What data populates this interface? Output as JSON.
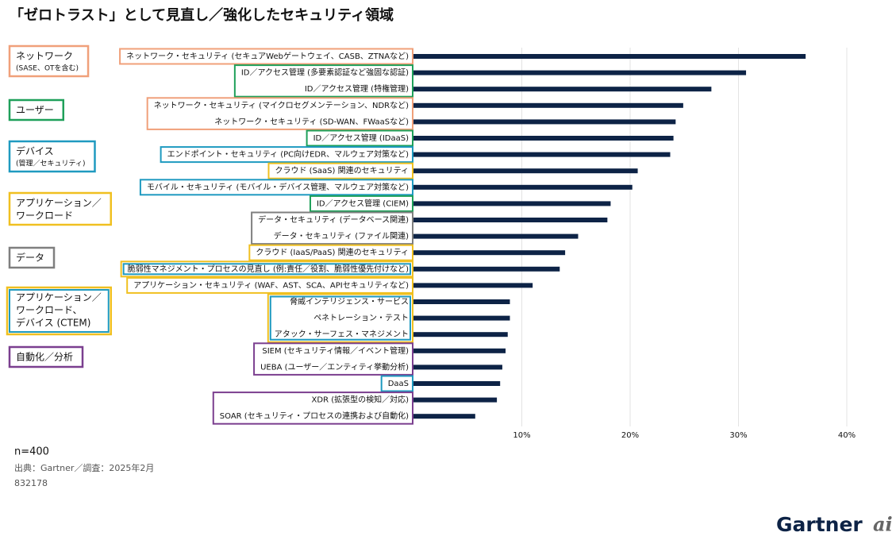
{
  "chart_data": {
    "type": "hbar",
    "title": "「ゼロトラスト」として見直し／強化したセキュリティ領域",
    "categories": [
      "ネットワーク・セキュリティ (セキュアWebゲートウェイ、CASB、ZTNAなど)",
      "ID／アクセス管理 (多要素認証など強固な認証)",
      "ID／アクセス管理 (特権管理)",
      "ネットワーク・セキュリティ (マイクロセグメンテーション、NDRなど)",
      "ネットワーク・セキュリティ (SD-WAN、FWaaSなど)",
      "ID／アクセス管理 (IDaaS)",
      "エンドポイント・セキュリティ (PC向けEDR、マルウェア対策など)",
      "クラウド (SaaS) 関連のセキュリティ",
      "モバイル・セキュリティ (モバイル・デバイス管理、マルウェア対策など)",
      "ID／アクセス管理 (CIEM)",
      "データ・セキュリティ (データベース関連)",
      "データ・セキュリティ (ファイル関連)",
      "クラウド (IaaS/PaaS) 関連のセキュリティ",
      "脆弱性マネジメント・プロセスの見直し (例:責任／役割、脆弱性優先付けなど)",
      "アプリケーション・セキュリティ (WAF、AST、SCA、APIセキュリティなど)",
      "脅威インテリジェンス・サービス",
      "ペネトレーション・テスト",
      "アタック・サーフェス・マネジメント",
      "SIEM (セキュリティ情報／イベント管理)",
      "UEBA (ユーザー／エンティティ挙動分析)",
      "DaaS",
      "XDR (拡張型の検知／対応)",
      "SOAR (セキュリティ・プロセスの連携および自動化)"
    ],
    "values": [
      36.2,
      30.7,
      27.5,
      24.9,
      24.2,
      24.0,
      23.7,
      20.7,
      20.2,
      18.2,
      17.9,
      15.2,
      14.0,
      13.5,
      11.0,
      8.9,
      8.9,
      8.7,
      8.5,
      8.2,
      8.0,
      7.7,
      5.7
    ],
    "color": "#0d2346",
    "label_colors": [
      [
        "#f0a07a"
      ],
      [
        "#1fa05a"
      ],
      [
        "#1fa05a"
      ],
      [
        "#f0a07a"
      ],
      [
        "#f0a07a"
      ],
      [
        "#1fa05a"
      ],
      [
        "#1f9ac0"
      ],
      [
        "#f0c020"
      ],
      [
        "#1f9ac0"
      ],
      [
        "#1fa05a"
      ],
      [
        "#7f7f7f"
      ],
      [
        "#7f7f7f"
      ],
      [
        "#f0c020"
      ],
      [
        "#f0c020",
        "#1f9ac0"
      ],
      [
        "#f0c020"
      ],
      [
        "#f0c020",
        "#1f9ac0"
      ],
      [
        "#f0c020",
        "#1f9ac0"
      ],
      [
        "#f0c020",
        "#1f9ac0"
      ],
      [
        "#7b3f8f"
      ],
      [
        "#7b3f8f"
      ],
      [
        "#1f9ac0"
      ],
      [
        "#7b3f8f"
      ],
      [
        "#7b3f8f"
      ]
    ],
    "xlim": [
      0,
      40
    ],
    "xticks": [
      {
        "value": 10,
        "label": "10%"
      },
      {
        "value": 20,
        "label": "20%"
      },
      {
        "value": 30,
        "label": "30%"
      },
      {
        "value": 40,
        "label": "40%"
      }
    ],
    "grid": true,
    "legend": [
      {
        "lines": [
          "ネットワーク"
        ],
        "note": "(SASE、OTを含む)",
        "color": "#f0a07a"
      },
      {
        "lines": [
          "ユーザー"
        ],
        "color": "#1fa05a"
      },
      {
        "lines": [
          "デバイス"
        ],
        "note": "(管理／セキュリティ)",
        "color": "#1f9ac0"
      },
      {
        "lines": [
          "アプリケーション／",
          "ワークロード"
        ],
        "color": "#f0c020"
      },
      {
        "lines": [
          "データ"
        ],
        "color": "#7f7f7f"
      },
      {
        "lines": [
          "アプリケーション／",
          "ワークロード、",
          "デバイス (CTEM)"
        ],
        "color": "#f0c020",
        "color2": "#1f9ac0"
      },
      {
        "lines": [
          "自動化／分析"
        ],
        "color": "#7b3f8f"
      }
    ],
    "sample": "n=400",
    "source": "出典：Gartner／調査：2025年2月",
    "id": "832178",
    "brand": "Gartner",
    "brand2": "ai"
  }
}
